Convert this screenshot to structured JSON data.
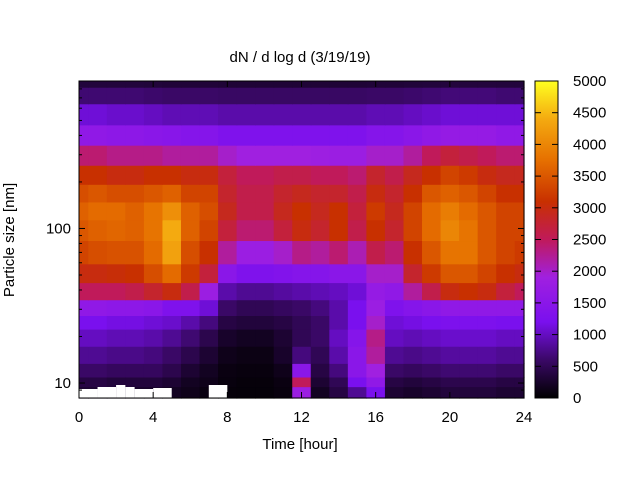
{
  "chart_data": {
    "type": "heatmap",
    "title": "dN / d log d (3/19/19)",
    "xlabel": "Time [hour]",
    "ylabel": "Particle size [nm]",
    "xlim": [
      0,
      24
    ],
    "ylim": [
      8,
      900
    ],
    "yscale": "log",
    "x_ticks": [
      0,
      4,
      8,
      12,
      16,
      20,
      24
    ],
    "x_tick_labels": [
      "0",
      "4",
      "8",
      "12",
      "16",
      "20",
      "24"
    ],
    "y_ticks": [
      10,
      100
    ],
    "y_tick_labels": [
      "10",
      "100"
    ],
    "colorbar": {
      "range": [
        0,
        5000
      ],
      "ticks": [
        0,
        500,
        1000,
        1500,
        2000,
        2500,
        3000,
        3500,
        4000,
        4500,
        5000
      ],
      "tick_labels": [
        "0",
        "500",
        "1000",
        "1500",
        "2000",
        "2500",
        "3000",
        "3500",
        "4000",
        "4500",
        "5000"
      ],
      "colormap": "black-purple-red-orange-yellow"
    },
    "grid": false,
    "data_note_values": {
      "hours": [
        0,
        1,
        2,
        3,
        4,
        5,
        6,
        7,
        8,
        9,
        10,
        11,
        12,
        13,
        14,
        15,
        16,
        17,
        18,
        19,
        20,
        21,
        22,
        23,
        24
      ],
      "sizes_nm": [
        9,
        10,
        12,
        15,
        20,
        25,
        30,
        40,
        50,
        70,
        100,
        130,
        170,
        220,
        300,
        400,
        550,
        750,
        900
      ],
      "values": [
        [
          300,
          300,
          250,
          250,
          250,
          200,
          150,
          100,
          60,
          50,
          50,
          80,
          1800,
          200,
          400,
          800,
          1200,
          300,
          250,
          300,
          350,
          350,
          350,
          300,
          300
        ],
        [
          400,
          400,
          350,
          350,
          350,
          300,
          200,
          150,
          80,
          60,
          60,
          100,
          2500,
          300,
          500,
          1200,
          1600,
          400,
          350,
          400,
          450,
          450,
          450,
          400,
          400
        ],
        [
          600,
          600,
          550,
          550,
          550,
          450,
          300,
          200,
          100,
          80,
          80,
          150,
          1500,
          400,
          700,
          1500,
          1900,
          600,
          550,
          600,
          650,
          650,
          650,
          600,
          600
        ],
        [
          800,
          800,
          750,
          750,
          700,
          600,
          450,
          300,
          150,
          120,
          120,
          250,
          700,
          500,
          900,
          1500,
          2200,
          800,
          750,
          800,
          850,
          850,
          850,
          800,
          800
        ],
        [
          1000,
          1000,
          950,
          950,
          900,
          800,
          650,
          450,
          250,
          200,
          200,
          300,
          500,
          600,
          1000,
          1400,
          2300,
          1000,
          950,
          1000,
          1050,
          1050,
          1050,
          1000,
          1000
        ],
        [
          1200,
          1200,
          1150,
          1150,
          1100,
          1050,
          900,
          700,
          400,
          350,
          350,
          400,
          500,
          600,
          900,
          1200,
          2000,
          1100,
          1150,
          1200,
          1250,
          1250,
          1250,
          1200,
          1200
        ],
        [
          1600,
          1600,
          1550,
          1550,
          1500,
          1300,
          1300,
          1100,
          600,
          500,
          500,
          550,
          600,
          700,
          900,
          1200,
          1800,
          1300,
          1400,
          1500,
          1600,
          1600,
          1600,
          1600,
          1600
        ],
        [
          2500,
          2500,
          2500,
          2600,
          2800,
          3000,
          2600,
          1800,
          900,
          800,
          800,
          850,
          900,
          950,
          1000,
          1100,
          1700,
          1600,
          2200,
          2600,
          3000,
          3100,
          3000,
          2700,
          2500
        ],
        [
          3000,
          3000,
          3050,
          3100,
          3400,
          3700,
          3200,
          2700,
          1500,
          1300,
          1300,
          1350,
          1400,
          1400,
          1500,
          1500,
          2000,
          2000,
          2800,
          3200,
          3500,
          3500,
          3300,
          3100,
          3000
        ],
        [
          3300,
          3400,
          3450,
          3450,
          3700,
          4300,
          3400,
          3100,
          2200,
          1800,
          1800,
          2000,
          2300,
          2200,
          2400,
          2100,
          2600,
          2400,
          3100,
          3500,
          3800,
          3800,
          3500,
          3300,
          3200
        ],
        [
          3500,
          3600,
          3650,
          3600,
          3800,
          4400,
          3600,
          3300,
          2700,
          2400,
          2400,
          2700,
          3000,
          2800,
          3100,
          2600,
          3100,
          2800,
          3300,
          3700,
          4000,
          3800,
          3500,
          3300,
          3300
        ],
        [
          3600,
          3700,
          3700,
          3600,
          3800,
          4100,
          3600,
          3400,
          2900,
          2600,
          2600,
          2900,
          3100,
          2900,
          3100,
          2700,
          3200,
          2900,
          3300,
          3700,
          3900,
          3700,
          3500,
          3300,
          3300
        ],
        [
          3400,
          3500,
          3400,
          3400,
          3500,
          3600,
          3300,
          3300,
          2800,
          2600,
          2600,
          2800,
          2900,
          2800,
          2800,
          2600,
          3000,
          2800,
          3100,
          3500,
          3600,
          3500,
          3300,
          3100,
          3100
        ],
        [
          3100,
          3100,
          3000,
          3000,
          3100,
          3100,
          3000,
          3000,
          2700,
          2500,
          2500,
          2600,
          2600,
          2500,
          2500,
          2400,
          2800,
          2600,
          2900,
          3100,
          3300,
          3200,
          3000,
          2900,
          2900
        ],
        [
          2400,
          2400,
          2300,
          2300,
          2300,
          2200,
          2200,
          2200,
          2000,
          1900,
          1900,
          1900,
          1900,
          1850,
          1800,
          1800,
          2000,
          2000,
          2200,
          2500,
          2700,
          2600,
          2500,
          2400,
          2400
        ],
        [
          1600,
          1600,
          1550,
          1550,
          1500,
          1450,
          1400,
          1400,
          1300,
          1300,
          1300,
          1300,
          1300,
          1300,
          1300,
          1300,
          1400,
          1400,
          1500,
          1600,
          1700,
          1700,
          1700,
          1600,
          1600
        ],
        [
          1100,
          1100,
          1050,
          1050,
          1000,
          950,
          950,
          950,
          900,
          900,
          900,
          900,
          900,
          900,
          900,
          900,
          950,
          950,
          1000,
          1050,
          1100,
          1100,
          1100,
          1100,
          1100
        ],
        [
          650,
          650,
          650,
          650,
          620,
          600,
          600,
          600,
          580,
          580,
          580,
          580,
          580,
          580,
          580,
          580,
          600,
          600,
          620,
          650,
          680,
          680,
          680,
          650,
          650
        ],
        [
          350,
          350,
          350,
          350,
          340,
          330,
          330,
          330,
          320,
          320,
          320,
          320,
          320,
          320,
          320,
          320,
          330,
          330,
          340,
          350,
          360,
          360,
          360,
          350,
          350
        ]
      ]
    },
    "missing_data_hours": [
      [
        0,
        1
      ],
      [
        1,
        2
      ],
      [
        2,
        2.5
      ],
      [
        2.5,
        3
      ],
      [
        3,
        4
      ],
      [
        4,
        5
      ],
      [
        7,
        8
      ]
    ]
  }
}
